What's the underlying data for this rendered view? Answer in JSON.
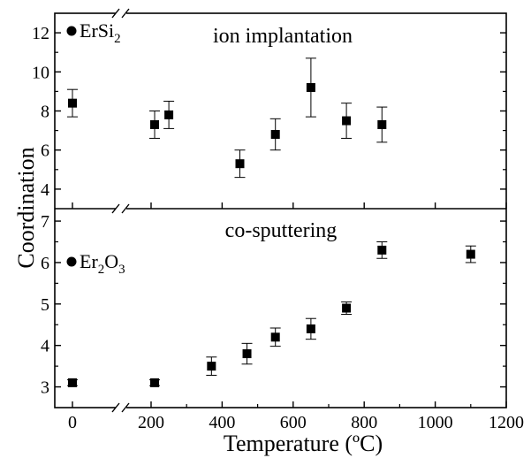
{
  "chart_data": {
    "type": "scatter",
    "xlabel": "Temperature (ºC)",
    "ylabel": "Coordination",
    "x_ticks": [
      0,
      200,
      400,
      600,
      800,
      1000,
      1200
    ],
    "grid": false,
    "x_axis_break": "between 0 and 200",
    "panels": [
      {
        "title": "ion implantation",
        "legend": {
          "marker": "●",
          "label": "ErSi",
          "sub": "2",
          "position": "top-left"
        },
        "ylim": [
          3.0,
          13.0
        ],
        "y_ticks": [
          4,
          6,
          8,
          10,
          12
        ],
        "series": [
          {
            "points": [
              {
                "x": 0,
                "y": 8.4,
                "err": 0.7
              },
              {
                "x": 210,
                "y": 7.3,
                "err": 0.7
              },
              {
                "x": 250,
                "y": 7.8,
                "err": 0.7
              },
              {
                "x": 450,
                "y": 5.3,
                "err": 0.7
              },
              {
                "x": 550,
                "y": 6.8,
                "err": 0.8
              },
              {
                "x": 650,
                "y": 9.2,
                "err": 1.5
              },
              {
                "x": 750,
                "y": 7.5,
                "err": 0.9
              },
              {
                "x": 850,
                "y": 7.3,
                "err": 0.9
              }
            ]
          }
        ]
      },
      {
        "title": "co-sputtering",
        "legend": {
          "marker": "●",
          "label": "Er",
          "sub": "2",
          "label2": "O",
          "sub2": "3",
          "position": "top-left"
        },
        "ylim": [
          2.5,
          7.3
        ],
        "y_ticks": [
          3,
          4,
          5,
          6,
          7
        ],
        "series": [
          {
            "points": [
              {
                "x": 0,
                "y": 3.1,
                "err": 0.07
              },
              {
                "x": 210,
                "y": 3.1,
                "err": 0.07
              },
              {
                "x": 370,
                "y": 3.5,
                "err": 0.22
              },
              {
                "x": 470,
                "y": 3.8,
                "err": 0.25
              },
              {
                "x": 550,
                "y": 4.2,
                "err": 0.22
              },
              {
                "x": 650,
                "y": 4.4,
                "err": 0.25
              },
              {
                "x": 750,
                "y": 4.9,
                "err": 0.15
              },
              {
                "x": 850,
                "y": 6.3,
                "err": 0.2
              },
              {
                "x": 1100,
                "y": 6.2,
                "err": 0.2
              }
            ]
          }
        ]
      }
    ]
  }
}
